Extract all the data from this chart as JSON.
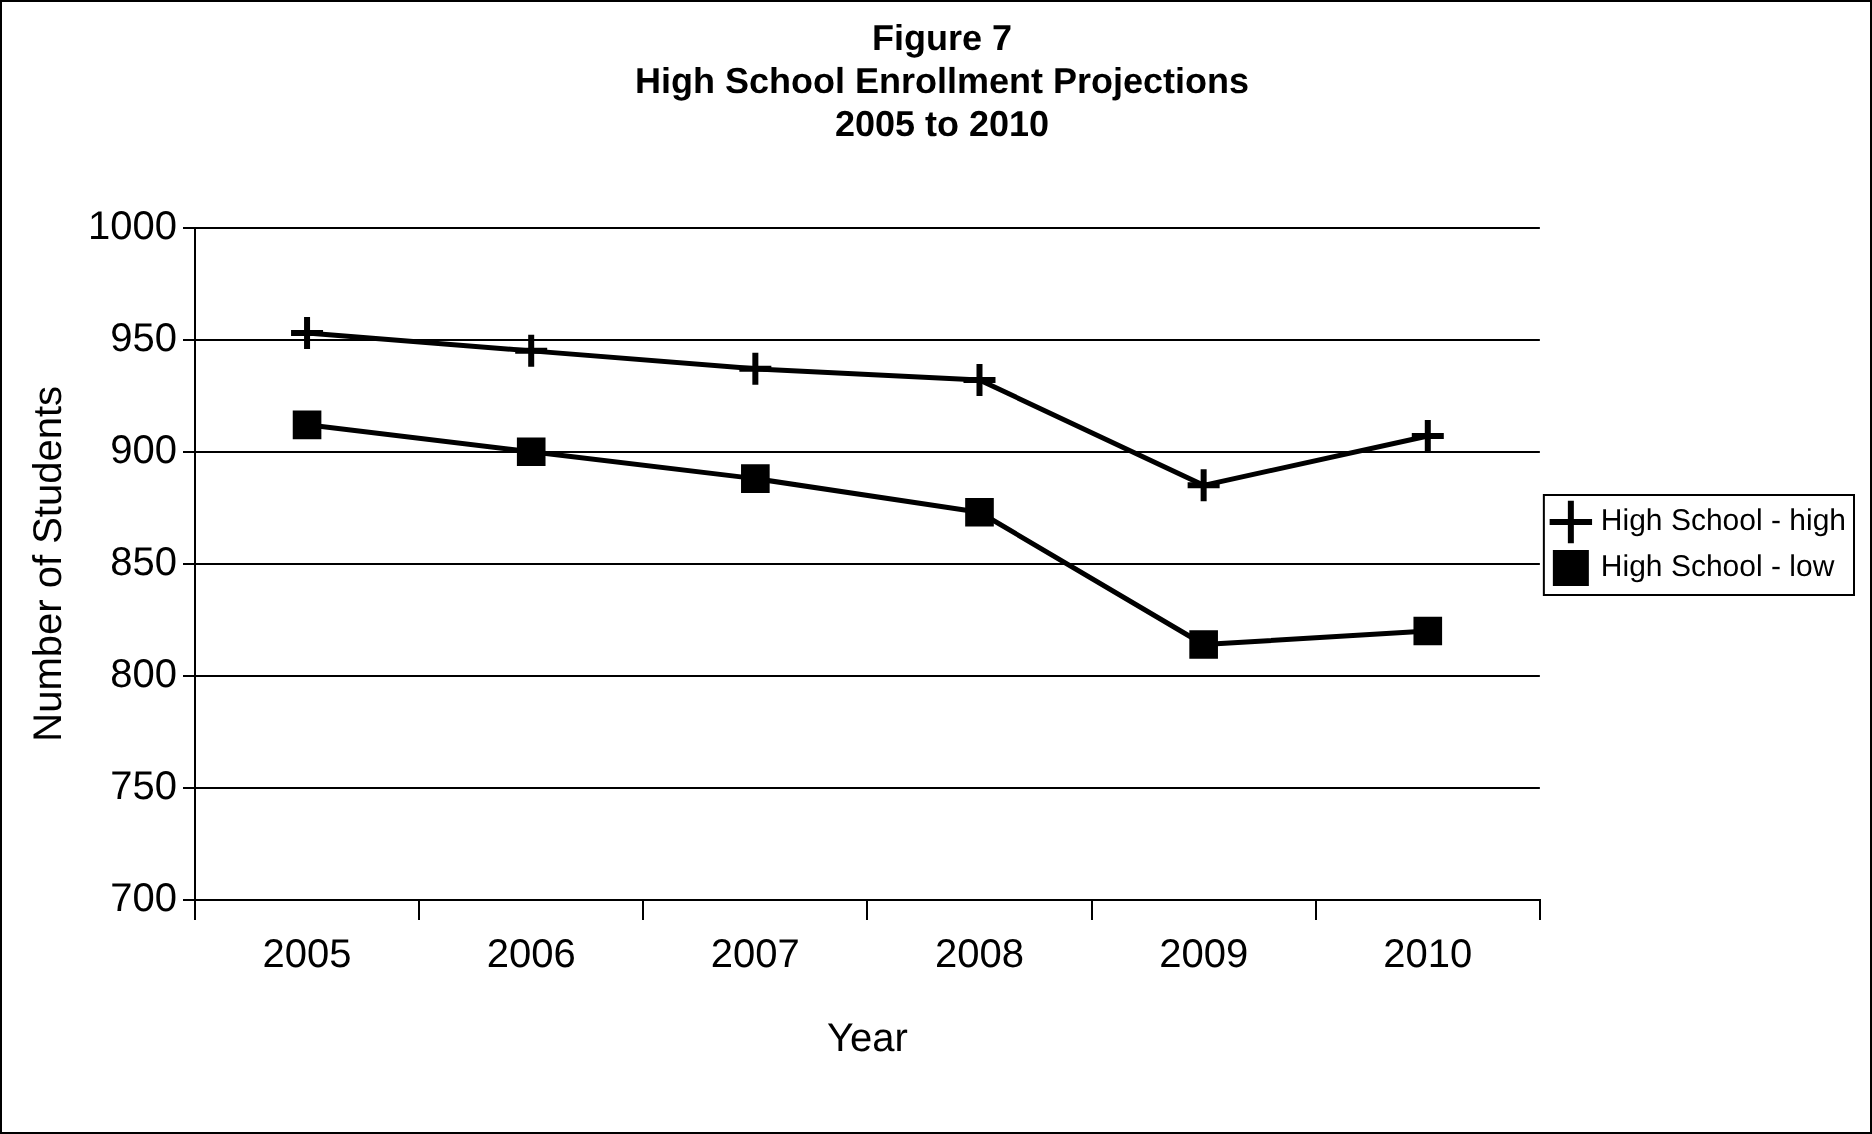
{
  "chart_data": {
    "type": "line",
    "title": "Figure 7\nHigh School Enrollment Projections\n2005 to 2010",
    "xlabel": "Year",
    "ylabel": "Number of Students",
    "categories": [
      "2005",
      "2006",
      "2007",
      "2008",
      "2009",
      "2010"
    ],
    "series": [
      {
        "name": "High School - high",
        "color": "#000000",
        "marker": "cross",
        "values": [
          953,
          945,
          937,
          932,
          885,
          907
        ]
      },
      {
        "name": "High School - low",
        "color": "#000000",
        "marker": "square",
        "values": [
          912,
          900,
          888,
          873,
          814,
          820
        ]
      }
    ],
    "ylim": [
      700,
      1000
    ],
    "yticks": [
      700,
      750,
      800,
      850,
      900,
      950,
      1000
    ],
    "grid": "y",
    "legend": "right"
  }
}
